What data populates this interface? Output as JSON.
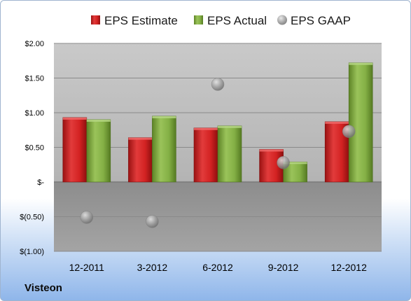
{
  "company": "Visteon",
  "chart_data": {
    "type": "bar",
    "categories": [
      "12-2011",
      "3-2012",
      "6-2012",
      "9-2012",
      "12-2012"
    ],
    "series": [
      {
        "name": "EPS Estimate",
        "kind": "bar",
        "color": "#c81f1f",
        "values": [
          0.93,
          0.64,
          0.78,
          0.47,
          0.87
        ]
      },
      {
        "name": "EPS Actual",
        "kind": "bar",
        "color": "#77a03a",
        "values": [
          0.9,
          0.95,
          0.81,
          0.29,
          1.72
        ]
      },
      {
        "name": "EPS GAAP",
        "kind": "scatter",
        "color": "#9a9a9a",
        "values": [
          -0.51,
          -0.57,
          1.41,
          0.28,
          0.73
        ]
      }
    ],
    "ylim": [
      -1.0,
      2.0
    ],
    "yticks": [
      2.0,
      1.5,
      1.0,
      0.5,
      0.0,
      -0.5,
      -1.0
    ],
    "ytick_labels": [
      "$2.00",
      "$1.50",
      "$1.00",
      "$0.50",
      "$-",
      "$(0.50)",
      "$(1.00)"
    ],
    "grid": true,
    "legend_position": "top"
  }
}
